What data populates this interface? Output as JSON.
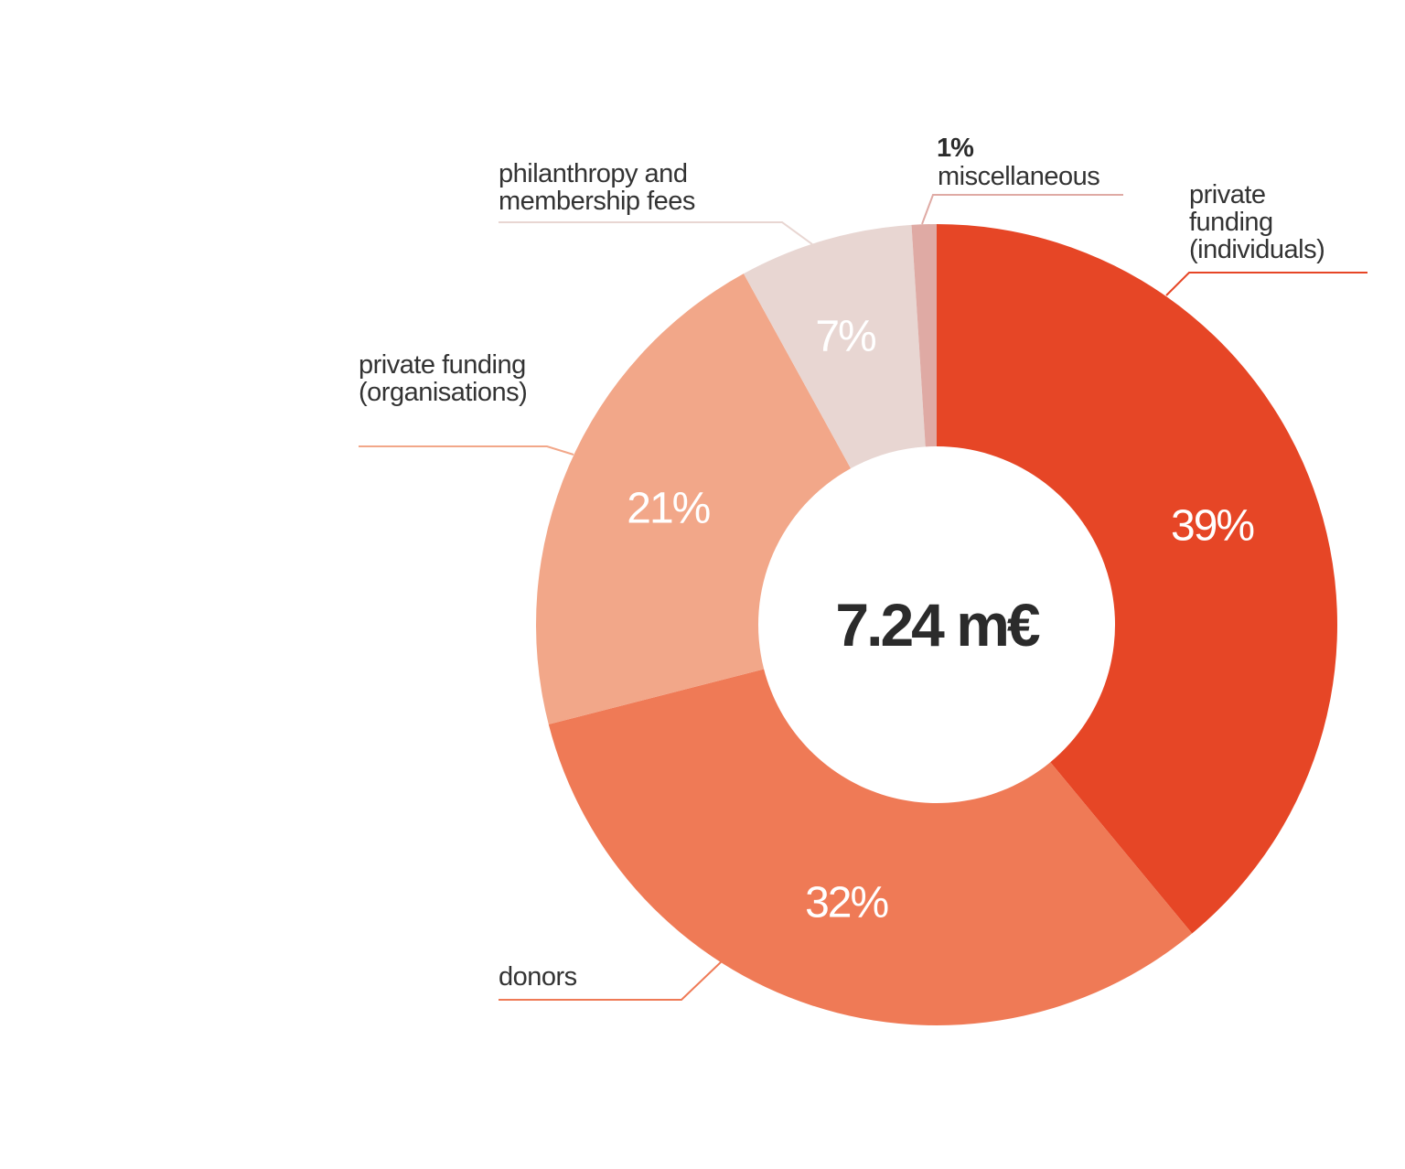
{
  "chart_data": {
    "type": "donut",
    "center_label": "7.24 m€",
    "categories": [
      "private funding (individuals)",
      "donors",
      "private funding (organisations)",
      "philanthropy and membership fees",
      "miscellaneous"
    ],
    "values": [
      39,
      32,
      21,
      7,
      1
    ],
    "value_labels": [
      "39%",
      "32%",
      "21%",
      "7%",
      "1%"
    ],
    "colors": [
      "#e64626",
      "#ef7a56",
      "#f2a789",
      "#e8d6d2",
      "#dfaaa4"
    ]
  }
}
